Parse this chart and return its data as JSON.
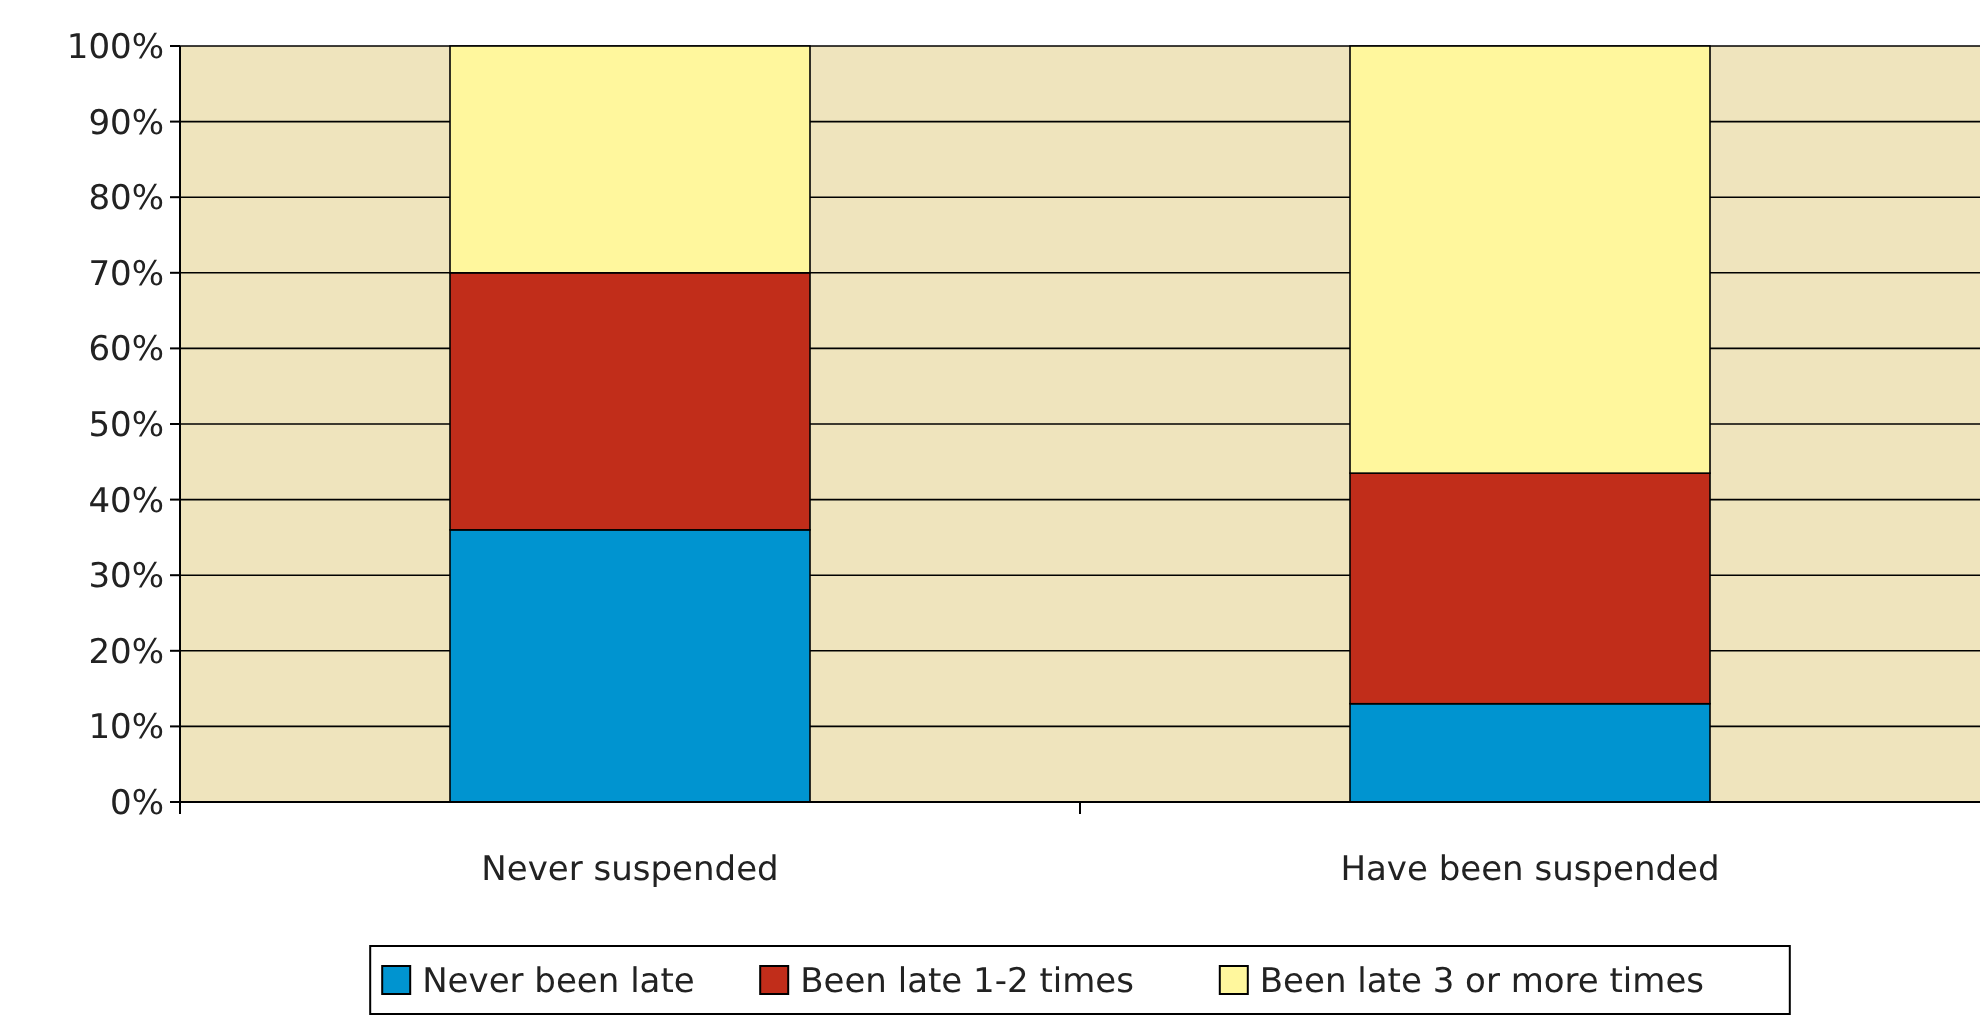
{
  "chart_data": {
    "type": "bar",
    "stacked": true,
    "categories": [
      "Never suspended",
      "Have been suspended"
    ],
    "series": [
      {
        "name": "Never been late",
        "color": "#0094d0",
        "values": [
          36,
          13
        ]
      },
      {
        "name": "Been late 1-2 times",
        "color": "#c12d1a",
        "values": [
          34,
          30.5
        ]
      },
      {
        "name": "Been late 3 or more times",
        "color": "#fff79d",
        "values": [
          30,
          56.5
        ]
      }
    ],
    "ylim": [
      0,
      100
    ],
    "yticks": [
      {
        "value": 0,
        "label": "0%"
      },
      {
        "value": 10,
        "label": "10%"
      },
      {
        "value": 20,
        "label": "20%"
      },
      {
        "value": 30,
        "label": "30%"
      },
      {
        "value": 40,
        "label": "40%"
      },
      {
        "value": 50,
        "label": "50%"
      },
      {
        "value": 60,
        "label": "60%"
      },
      {
        "value": 70,
        "label": "70%"
      },
      {
        "value": 80,
        "label": "80%"
      },
      {
        "value": 90,
        "label": "90%"
      },
      {
        "value": 100,
        "label": "100%"
      }
    ],
    "grid": "y",
    "legend": "bottom"
  }
}
